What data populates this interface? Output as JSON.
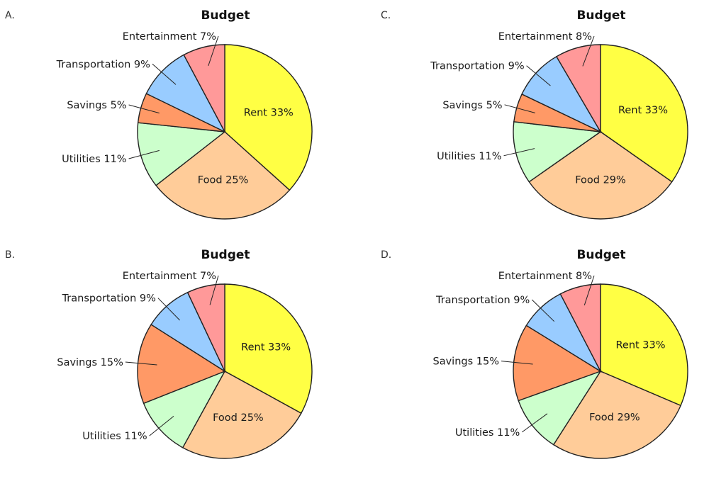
{
  "chart_data": [
    {
      "type": "pie",
      "panel": "A.",
      "title": "Budget",
      "slices": [
        {
          "label": "Rent 33%",
          "value": 33,
          "color": "#ffff44"
        },
        {
          "label": "Food 25%",
          "value": 25,
          "color": "#ffcc99"
        },
        {
          "label": "Utilities 11%",
          "value": 11,
          "color": "#ccffcc"
        },
        {
          "label": "Savings 5%",
          "value": 5,
          "color": "#ff9966"
        },
        {
          "label": "Transportation 9%",
          "value": 9,
          "color": "#99ccff"
        },
        {
          "label": "Entertainment 7%",
          "value": 7,
          "color": "#ff9999"
        }
      ]
    },
    {
      "type": "pie",
      "panel": "B.",
      "title": "Budget",
      "slices": [
        {
          "label": "Rent 33%",
          "value": 33,
          "color": "#ffff44"
        },
        {
          "label": "Food 25%",
          "value": 25,
          "color": "#ffcc99"
        },
        {
          "label": "Utilities 11%",
          "value": 11,
          "color": "#ccffcc"
        },
        {
          "label": "Savings 15%",
          "value": 15,
          "color": "#ff9966"
        },
        {
          "label": "Transportation 9%",
          "value": 9,
          "color": "#99ccff"
        },
        {
          "label": "Entertainment 7%",
          "value": 7,
          "color": "#ff9999"
        }
      ]
    },
    {
      "type": "pie",
      "panel": "C.",
      "title": "Budget",
      "slices": [
        {
          "label": "Rent 33%",
          "value": 33,
          "color": "#ffff44"
        },
        {
          "label": "Food 29%",
          "value": 29,
          "color": "#ffcc99"
        },
        {
          "label": "Utilities 11%",
          "value": 11,
          "color": "#ccffcc"
        },
        {
          "label": "Savings 5%",
          "value": 5,
          "color": "#ff9966"
        },
        {
          "label": "Transportation 9%",
          "value": 9,
          "color": "#99ccff"
        },
        {
          "label": "Entertainment 8%",
          "value": 8,
          "color": "#ff9999"
        }
      ]
    },
    {
      "type": "pie",
      "panel": "D.",
      "title": "Budget",
      "slices": [
        {
          "label": "Rent 33%",
          "value": 33,
          "color": "#ffff44"
        },
        {
          "label": "Food 29%",
          "value": 29,
          "color": "#ffcc99"
        },
        {
          "label": "Utilities 11%",
          "value": 11,
          "color": "#ccffcc"
        },
        {
          "label": "Savings 15%",
          "value": 15,
          "color": "#ff9966"
        },
        {
          "label": "Transportation 9%",
          "value": 9,
          "color": "#99ccff"
        },
        {
          "label": "Entertainment 8%",
          "value": 8,
          "color": "#ff9999"
        }
      ]
    }
  ]
}
